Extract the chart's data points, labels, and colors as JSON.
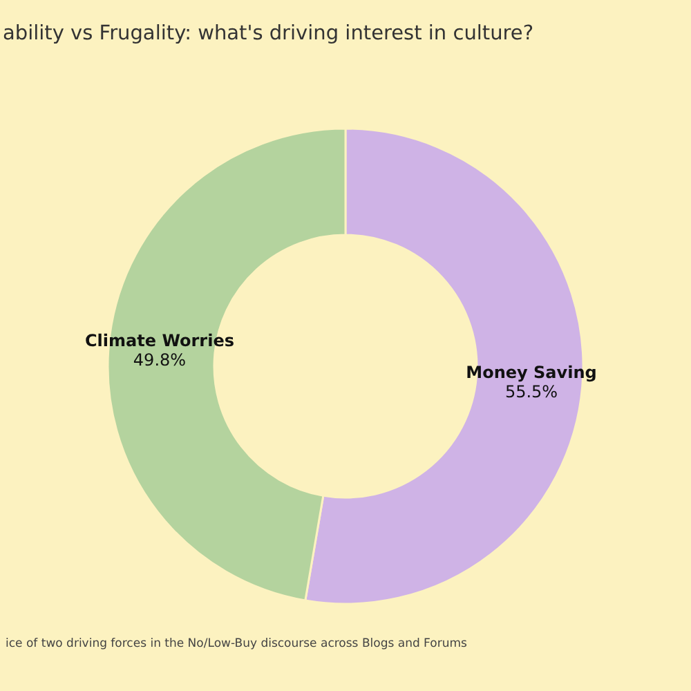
{
  "chart_data": {
    "type": "donut",
    "title": "ability vs Frugality: what's driving interest in culture?",
    "categories": [
      "Money Saving",
      "Climate Worries"
    ],
    "values": [
      55.5,
      49.8
    ],
    "value_labels": [
      "55.5%",
      "49.8%"
    ],
    "colors": [
      "#cfb3e6",
      "#b4d39e"
    ],
    "legend": false,
    "annotations": [
      "ice of two driving forces in the No/Low-Buy discourse across Blogs and Forums"
    ]
  }
}
